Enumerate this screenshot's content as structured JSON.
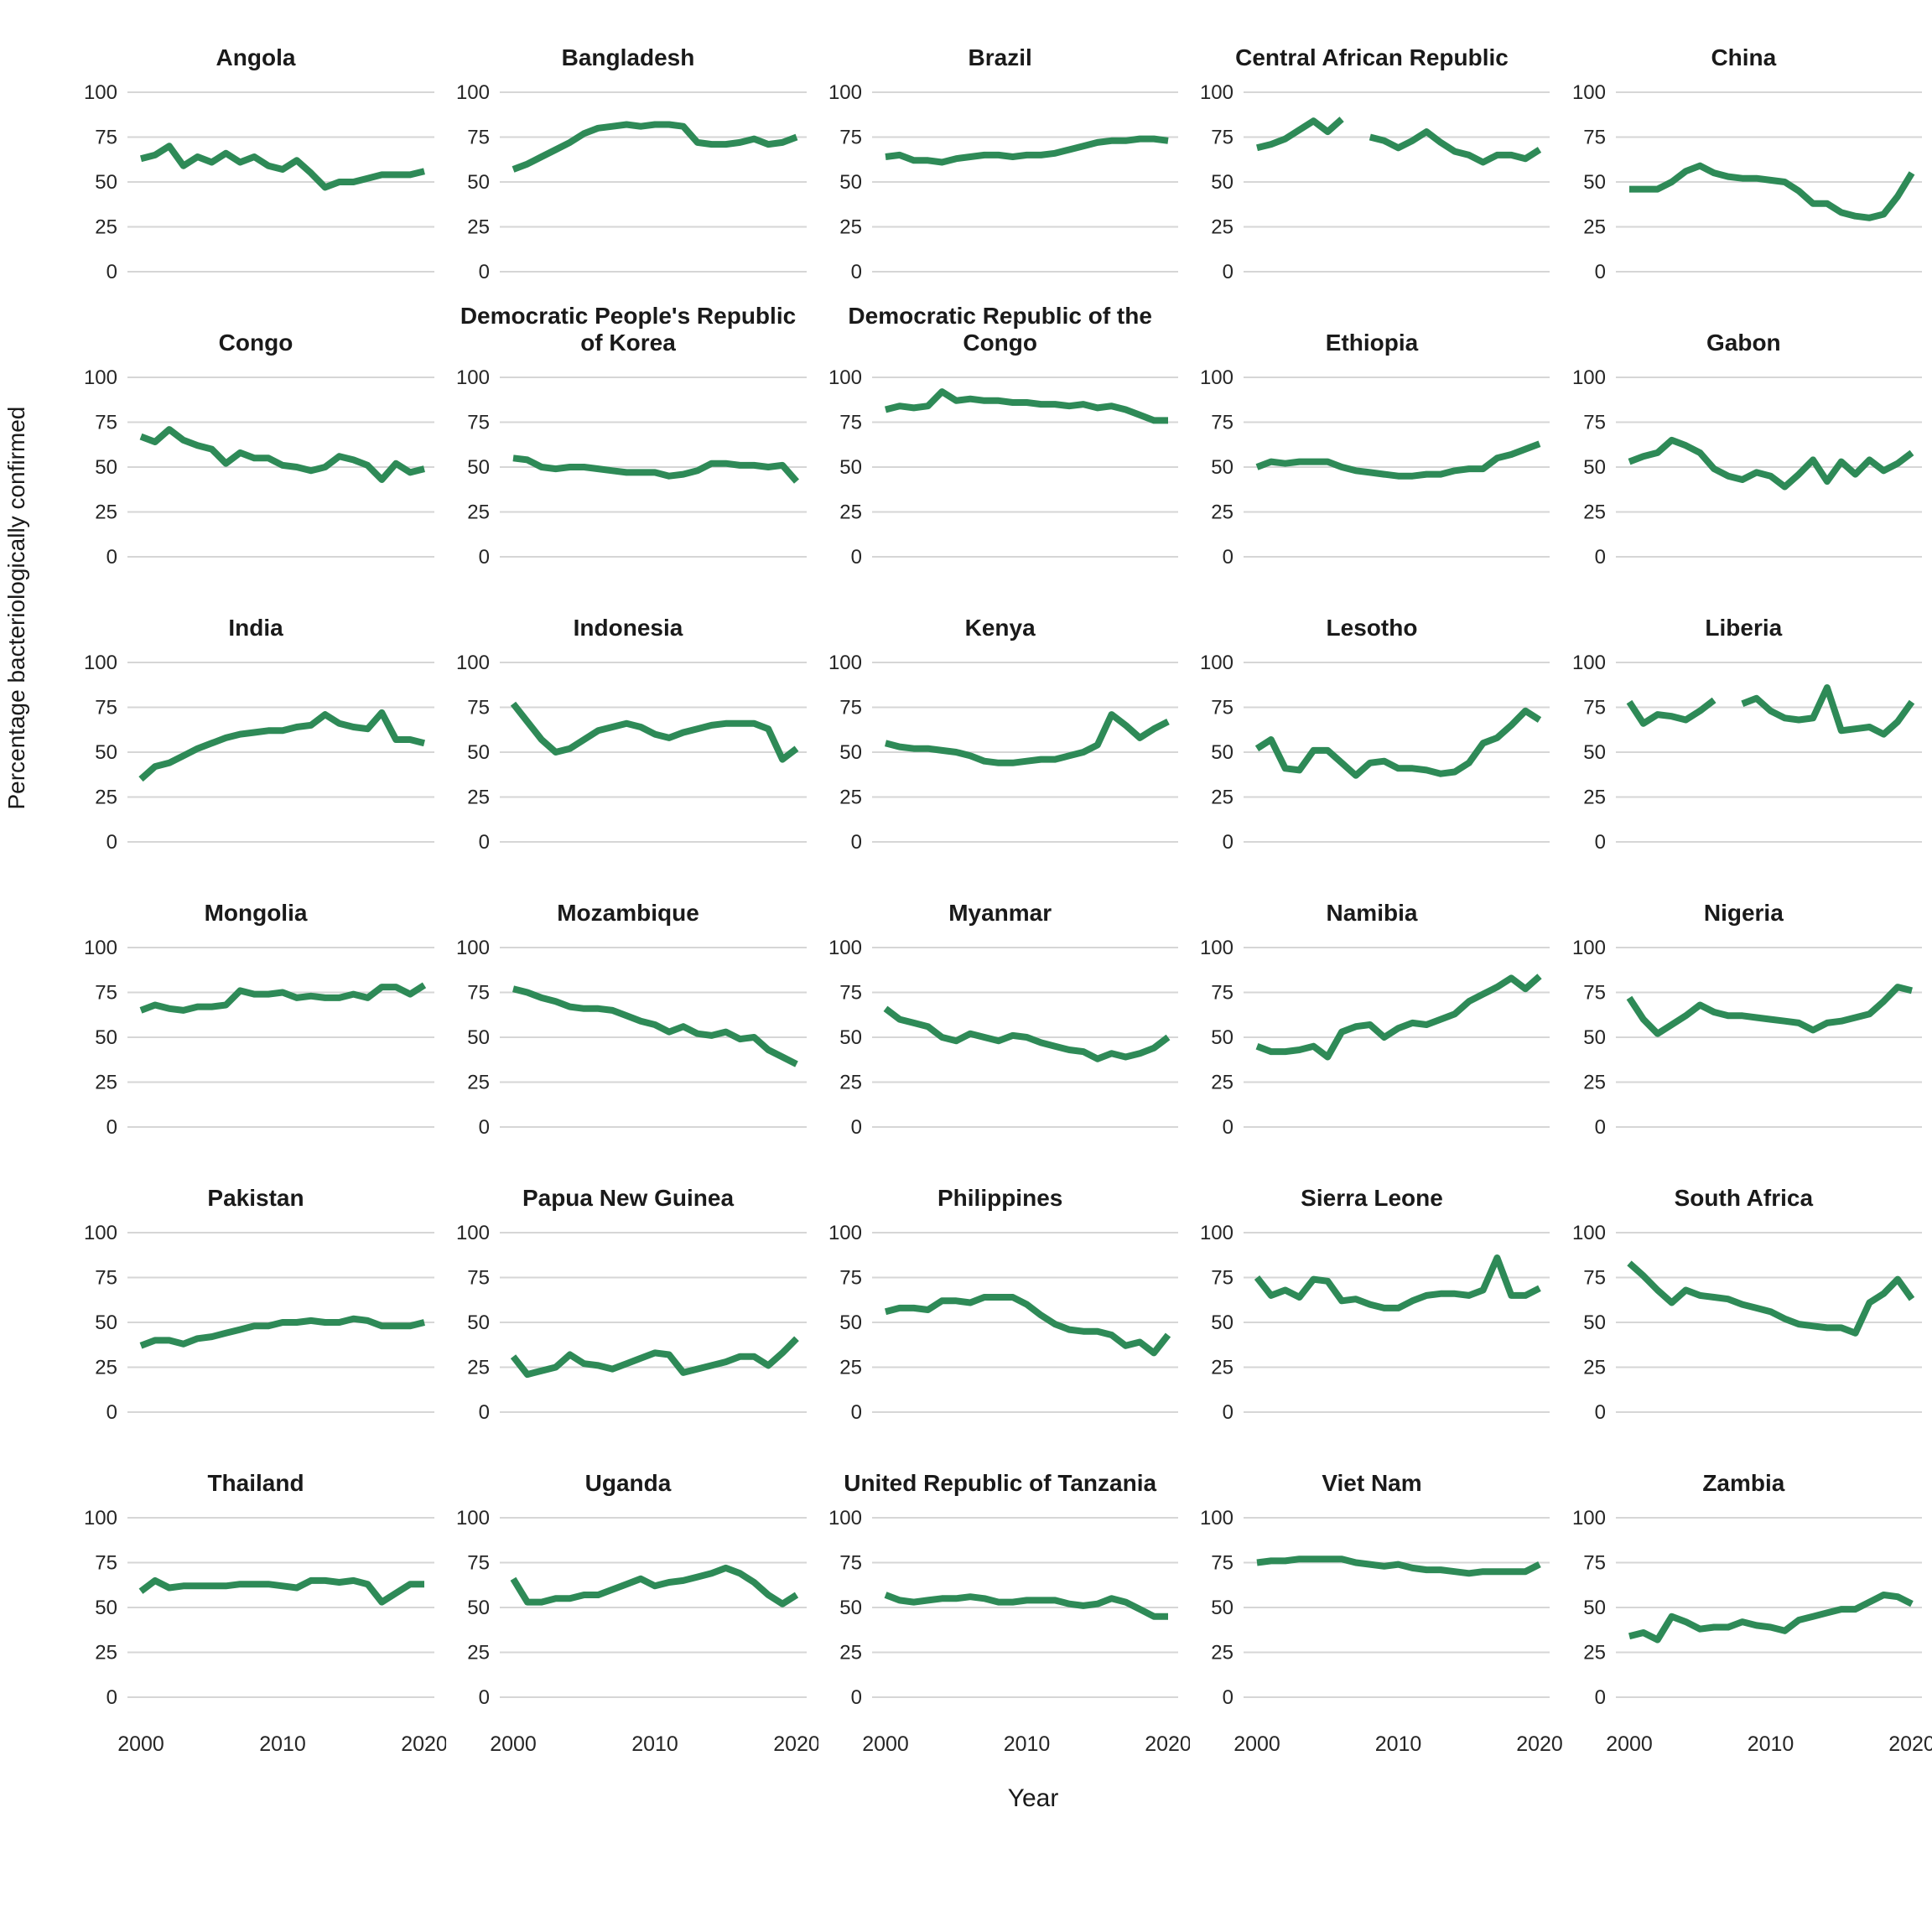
{
  "chart_data": {
    "type": "line",
    "title": "",
    "xlabel": "Year",
    "ylabel": "Percentage bacteriologically confirmed",
    "x_ticks": [
      2000,
      2010,
      2020
    ],
    "y_ticks": [
      0,
      25,
      50,
      75,
      100
    ],
    "xlim": [
      2000,
      2020
    ],
    "ylim": [
      0,
      100
    ],
    "grid": "horizontal-only",
    "legend": "none",
    "line_color": "#2e8a57",
    "gridline_color": "#d6d6d6",
    "tick_label_color": "#262626",
    "years": [
      2000,
      2001,
      2002,
      2003,
      2004,
      2005,
      2006,
      2007,
      2008,
      2009,
      2010,
      2011,
      2012,
      2013,
      2014,
      2015,
      2016,
      2017,
      2018,
      2019,
      2020
    ],
    "facets": [
      {
        "country": "Angola",
        "values": [
          63,
          65,
          70,
          59,
          64,
          61,
          66,
          61,
          64,
          59,
          57,
          62,
          55,
          47,
          50,
          50,
          52,
          54,
          54,
          54,
          56
        ]
      },
      {
        "country": "Bangladesh",
        "values": [
          57,
          60,
          64,
          68,
          72,
          77,
          80,
          81,
          82,
          81,
          82,
          82,
          81,
          72,
          71,
          71,
          72,
          74,
          71,
          72,
          75
        ]
      },
      {
        "country": "Brazil",
        "values": [
          64,
          65,
          62,
          62,
          61,
          63,
          64,
          65,
          65,
          64,
          65,
          65,
          66,
          68,
          70,
          72,
          73,
          73,
          74,
          74,
          73
        ]
      },
      {
        "country": "Central African Republic",
        "values": [
          69,
          71,
          74,
          79,
          84,
          78,
          85,
          null,
          75,
          73,
          69,
          73,
          78,
          72,
          67,
          65,
          61,
          65,
          65,
          63,
          68
        ]
      },
      {
        "country": "China",
        "values": [
          46,
          46,
          46,
          50,
          56,
          59,
          55,
          53,
          52,
          52,
          51,
          50,
          45,
          38,
          38,
          33,
          31,
          30,
          32,
          42,
          55
        ]
      },
      {
        "country": "Congo",
        "values": [
          67,
          64,
          71,
          65,
          62,
          60,
          52,
          58,
          55,
          55,
          51,
          50,
          48,
          50,
          56,
          54,
          51,
          43,
          52,
          47,
          49
        ]
      },
      {
        "country": "Democratic People's Republic of Korea",
        "values": [
          55,
          54,
          50,
          49,
          50,
          50,
          49,
          48,
          47,
          47,
          47,
          45,
          46,
          48,
          52,
          52,
          51,
          51,
          50,
          51,
          42
        ]
      },
      {
        "country": "Democratic Republic of the Congo",
        "values": [
          82,
          84,
          83,
          84,
          92,
          87,
          88,
          87,
          87,
          86,
          86,
          85,
          85,
          84,
          85,
          83,
          84,
          82,
          79,
          76,
          76
        ]
      },
      {
        "country": "Ethiopia",
        "values": [
          50,
          53,
          52,
          53,
          53,
          53,
          50,
          48,
          47,
          46,
          45,
          45,
          46,
          46,
          48,
          49,
          49,
          55,
          57,
          60,
          63
        ]
      },
      {
        "country": "Gabon",
        "values": [
          53,
          56,
          58,
          65,
          62,
          58,
          49,
          45,
          43,
          47,
          45,
          39,
          46,
          54,
          42,
          53,
          46,
          54,
          48,
          52,
          58
        ]
      },
      {
        "country": "India",
        "values": [
          35,
          42,
          44,
          48,
          52,
          55,
          58,
          60,
          61,
          62,
          62,
          64,
          65,
          71,
          66,
          64,
          63,
          72,
          57,
          57,
          55
        ]
      },
      {
        "country": "Indonesia",
        "values": [
          77,
          67,
          57,
          50,
          52,
          57,
          62,
          64,
          66,
          64,
          60,
          58,
          61,
          63,
          65,
          66,
          66,
          66,
          63,
          46,
          52
        ]
      },
      {
        "country": "Kenya",
        "values": [
          55,
          53,
          52,
          52,
          51,
          50,
          48,
          45,
          44,
          44,
          45,
          46,
          46,
          48,
          50,
          54,
          71,
          65,
          58,
          63,
          67
        ]
      },
      {
        "country": "Lesotho",
        "values": [
          52,
          57,
          41,
          40,
          51,
          51,
          44,
          37,
          44,
          45,
          41,
          41,
          40,
          38,
          39,
          44,
          55,
          58,
          65,
          73,
          68
        ]
      },
      {
        "country": "Liberia",
        "values": [
          78,
          66,
          71,
          70,
          68,
          73,
          79,
          null,
          77,
          80,
          73,
          69,
          68,
          69,
          86,
          62,
          63,
          64,
          60,
          67,
          78
        ]
      },
      {
        "country": "Mongolia",
        "values": [
          65,
          68,
          66,
          65,
          67,
          67,
          68,
          76,
          74,
          74,
          75,
          72,
          73,
          72,
          72,
          74,
          72,
          78,
          78,
          74,
          79
        ]
      },
      {
        "country": "Mozambique",
        "values": [
          77,
          75,
          72,
          70,
          67,
          66,
          66,
          65,
          62,
          59,
          57,
          53,
          56,
          52,
          51,
          53,
          49,
          50,
          43,
          39,
          35
        ]
      },
      {
        "country": "Myanmar",
        "values": [
          66,
          60,
          58,
          56,
          50,
          48,
          52,
          50,
          48,
          51,
          50,
          47,
          45,
          43,
          42,
          38,
          41,
          39,
          41,
          44,
          50
        ]
      },
      {
        "country": "Namibia",
        "values": [
          45,
          42,
          42,
          43,
          45,
          39,
          53,
          56,
          57,
          50,
          55,
          58,
          57,
          60,
          63,
          70,
          74,
          78,
          83,
          77,
          84
        ]
      },
      {
        "country": "Nigeria",
        "values": [
          72,
          60,
          52,
          57,
          62,
          68,
          64,
          62,
          62,
          61,
          60,
          59,
          58,
          54,
          58,
          59,
          61,
          63,
          70,
          78,
          76
        ]
      },
      {
        "country": "Pakistan",
        "values": [
          37,
          40,
          40,
          38,
          41,
          42,
          44,
          46,
          48,
          48,
          50,
          50,
          51,
          50,
          50,
          52,
          51,
          48,
          48,
          48,
          50
        ]
      },
      {
        "country": "Papua New Guinea",
        "values": [
          31,
          21,
          23,
          25,
          32,
          27,
          26,
          24,
          27,
          30,
          33,
          32,
          22,
          24,
          26,
          28,
          31,
          31,
          26,
          33,
          41
        ]
      },
      {
        "country": "Philippines",
        "values": [
          56,
          58,
          58,
          57,
          62,
          62,
          61,
          64,
          64,
          64,
          60,
          54,
          49,
          46,
          45,
          45,
          43,
          37,
          39,
          33,
          43
        ]
      },
      {
        "country": "Sierra Leone",
        "values": [
          75,
          65,
          68,
          64,
          74,
          73,
          62,
          63,
          60,
          58,
          58,
          62,
          65,
          66,
          66,
          65,
          68,
          86,
          65,
          65,
          69
        ]
      },
      {
        "country": "South Africa",
        "values": [
          83,
          76,
          68,
          61,
          68,
          65,
          64,
          63,
          60,
          58,
          56,
          52,
          49,
          48,
          47,
          47,
          44,
          61,
          66,
          74,
          63
        ]
      },
      {
        "country": "Thailand",
        "values": [
          59,
          65,
          61,
          62,
          62,
          62,
          62,
          63,
          63,
          63,
          62,
          61,
          65,
          65,
          64,
          65,
          63,
          53,
          58,
          63,
          63
        ]
      },
      {
        "country": "Uganda",
        "values": [
          66,
          53,
          53,
          55,
          55,
          57,
          57,
          60,
          63,
          66,
          62,
          64,
          65,
          67,
          69,
          72,
          69,
          64,
          57,
          52,
          57
        ]
      },
      {
        "country": "United Republic of Tanzania",
        "values": [
          57,
          54,
          53,
          54,
          55,
          55,
          56,
          55,
          53,
          53,
          54,
          54,
          54,
          52,
          51,
          52,
          55,
          53,
          49,
          45,
          45
        ]
      },
      {
        "country": "Viet Nam",
        "values": [
          75,
          76,
          76,
          77,
          77,
          77,
          77,
          75,
          74,
          73,
          74,
          72,
          71,
          71,
          70,
          69,
          70,
          70,
          70,
          70,
          74
        ]
      },
      {
        "country": "Zambia",
        "values": [
          34,
          36,
          32,
          45,
          42,
          38,
          39,
          39,
          42,
          40,
          39,
          37,
          43,
          45,
          47,
          49,
          49,
          53,
          57,
          56,
          52
        ]
      }
    ]
  }
}
